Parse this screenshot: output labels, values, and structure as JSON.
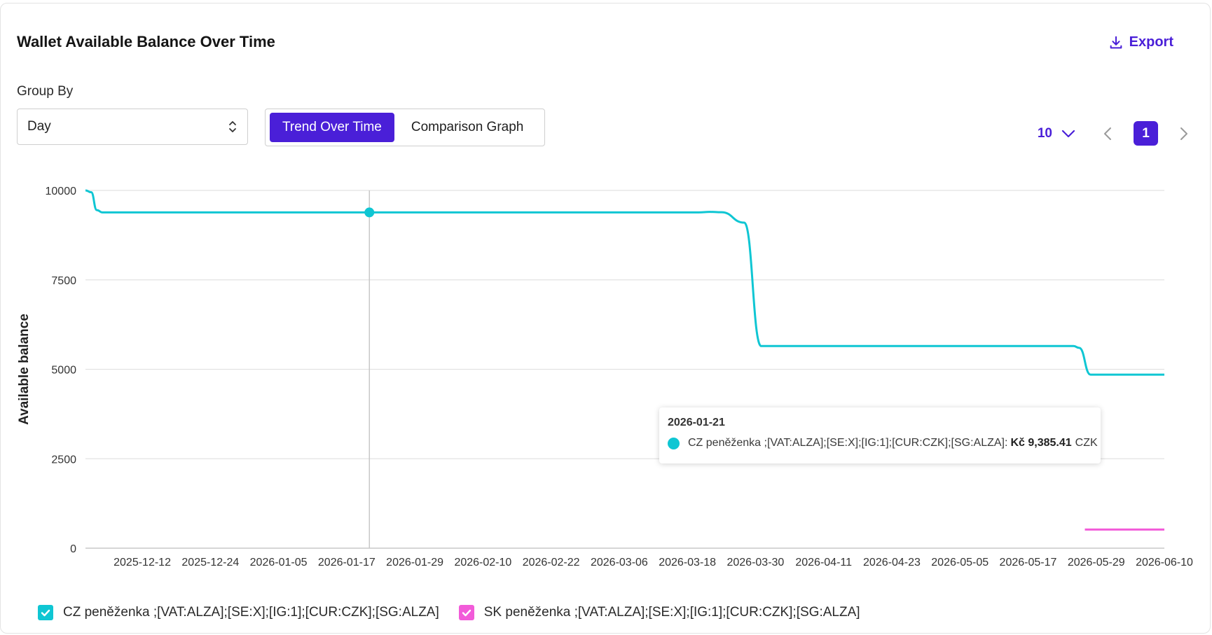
{
  "header": {
    "title": "Wallet Available Balance Over Time",
    "export_label": "Export"
  },
  "controls": {
    "group_by_label": "Group By",
    "group_by_value": "Day",
    "view_tabs": [
      {
        "label": "Trend Over Time",
        "active": true
      },
      {
        "label": "Comparison Graph",
        "active": false
      }
    ]
  },
  "pagination": {
    "page_size": "10",
    "current_page": "1"
  },
  "colors": {
    "accent": "#4a1fd8",
    "cz_series": "#0fc6d3",
    "sk_series": "#f25bd9"
  },
  "tooltip": {
    "date": "2026-01-21",
    "series_label": "CZ peněženka ;[VAT:ALZA];[SE:X];[IG:1];[CUR:CZK];[SG:ALZA]:",
    "value": "Kč 9,385.41",
    "unit": "CZK"
  },
  "legend": [
    {
      "label": "CZ peněženka ;[VAT:ALZA];[SE:X];[IG:1];[CUR:CZK];[SG:ALZA]",
      "checked": true
    },
    {
      "label": "SK peněženka ;[VAT:ALZA];[SE:X];[IG:1];[CUR:CZK];[SG:ALZA]",
      "checked": true
    }
  ],
  "chart_data": {
    "type": "line",
    "title": "",
    "xlabel": "",
    "ylabel": "Available balance",
    "x_ticks": [
      "2025-12-12",
      "2025-12-24",
      "2026-01-05",
      "2026-01-17",
      "2026-01-29",
      "2026-02-10",
      "2026-02-22",
      "2026-03-06",
      "2026-03-18",
      "2026-03-30",
      "2026-04-11",
      "2026-04-23",
      "2026-05-05",
      "2026-05-17",
      "2026-05-29",
      "2026-06-10"
    ],
    "y_ticks": [
      0,
      2500,
      5000,
      7500,
      10000
    ],
    "ylim": [
      0,
      10000
    ],
    "xlim": [
      "2025-12-02",
      "2026-06-10"
    ],
    "grid": true,
    "legend_position": "bottom-left",
    "highlight": {
      "x": "2026-01-21",
      "series": "CZ peněženka ;[VAT:ALZA];[SE:X];[IG:1];[CUR:CZK];[SG:ALZA]",
      "y": 9385.41
    },
    "series": [
      {
        "name": "CZ peněženka ;[VAT:ALZA];[SE:X];[IG:1];[CUR:CZK];[SG:ALZA]",
        "color": "#0fc6d3",
        "points": [
          [
            "2025-12-02",
            10000
          ],
          [
            "2025-12-03",
            9950
          ],
          [
            "2025-12-04",
            9450
          ],
          [
            "2025-12-05",
            9385.41
          ],
          [
            "2026-01-21",
            9385.41
          ],
          [
            "2026-03-20",
            9385.41
          ],
          [
            "2026-03-22",
            9400
          ],
          [
            "2026-03-24",
            9390
          ],
          [
            "2026-03-28",
            9100
          ],
          [
            "2026-03-31",
            5650
          ],
          [
            "2026-05-25",
            5650
          ],
          [
            "2026-05-26",
            5600
          ],
          [
            "2026-05-28",
            4850
          ],
          [
            "2026-06-10",
            4850
          ]
        ]
      },
      {
        "name": "SK peněženka ;[VAT:ALZA];[SE:X];[IG:1];[CUR:CZK];[SG:ALZA]",
        "color": "#f25bd9",
        "points": [
          [
            "2026-05-27",
            520
          ],
          [
            "2026-06-10",
            520
          ]
        ]
      }
    ]
  }
}
